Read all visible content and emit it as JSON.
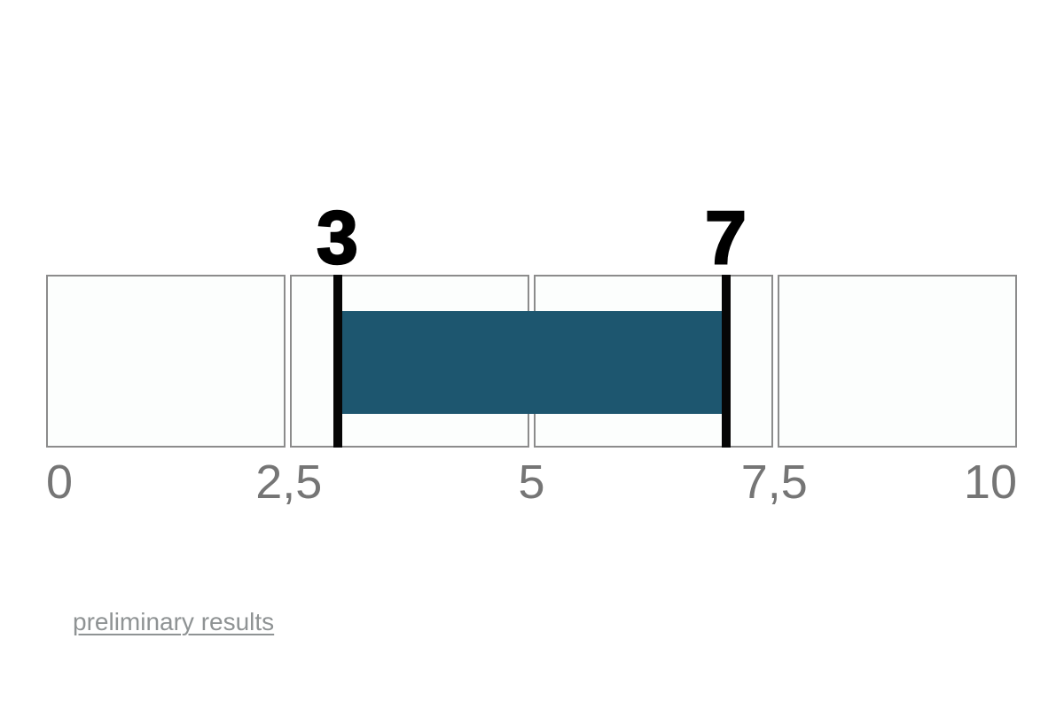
{
  "chart_data": {
    "type": "bar",
    "subtype": "linear-range-gauge",
    "title": "",
    "axis": {
      "min": 0,
      "max": 10,
      "ticks": [
        0,
        2.5,
        5,
        7.5,
        10
      ],
      "tick_labels": [
        "0",
        "2,5",
        "5",
        "7,5",
        "10"
      ],
      "decimal_separator": "comma"
    },
    "segments": 4,
    "range": {
      "start": 3,
      "end": 7,
      "color": "#1d566f"
    },
    "markers": [
      {
        "value": 3,
        "label": "3"
      },
      {
        "value": 7,
        "label": "7"
      }
    ],
    "grid": "off",
    "legend": "none"
  },
  "colors": {
    "range_fill": "#1d566f",
    "marker": "#060606",
    "segment_border": "#8c8c8c",
    "segment_fill": "#fcfefd",
    "axis_label": "#757575",
    "link": "#8f9394",
    "background": "#ffffff"
  },
  "footer": {
    "link_label": "preliminary results"
  }
}
